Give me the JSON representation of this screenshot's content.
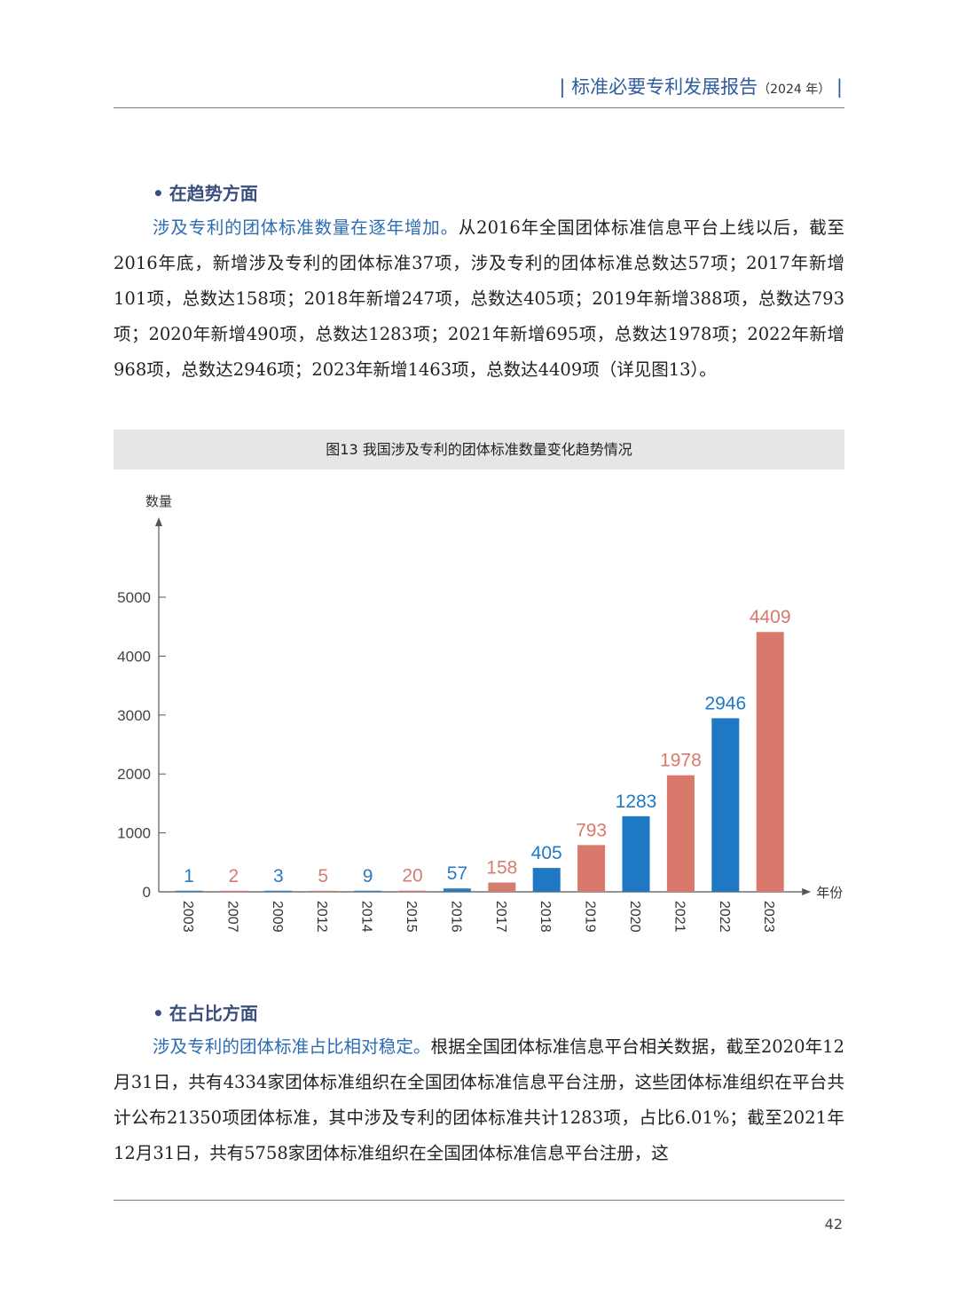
{
  "header": {
    "title": "标准必要专利发展报告",
    "year": "（2024 年）"
  },
  "section1": {
    "heading": "在趋势方面",
    "lead": "涉及专利的团体标准数量在逐年增加。",
    "body": "从2016年全国团体标准信息平台上线以后，截至2016年底，新增涉及专利的团体标准37项，涉及专利的团体标准总数达57项；2017年新增101项，总数达158项；2018年新增247项，总数达405项；2019年新增388项，总数达793项；2020年新增490项，总数达1283项；2021年新增695项，总数达1978项；2022年新增968项，总数达2946项；2023年新增1463项，总数达4409项（详见图13）。"
  },
  "figure": {
    "caption": "图13  我国涉及专利的团体标准数量变化趋势情况"
  },
  "chart_data": {
    "type": "bar",
    "title": "图13  我国涉及专利的团体标准数量变化趋势情况",
    "ylabel": "数量",
    "xlabel": "年份",
    "ylim": [
      0,
      5000
    ],
    "yticks": [
      0,
      1000,
      2000,
      3000,
      4000,
      5000
    ],
    "categories": [
      "2003",
      "2007",
      "2009",
      "2012",
      "2014",
      "2015",
      "2016",
      "2017",
      "2018",
      "2019",
      "2020",
      "2021",
      "2022",
      "2023"
    ],
    "values": [
      1,
      2,
      3,
      5,
      9,
      20,
      57,
      158,
      405,
      793,
      1283,
      1978,
      2946,
      4409
    ],
    "colors": [
      "#2b7bc0",
      "#d47d6e",
      "#2b7bc0",
      "#d47d6e",
      "#2b7bc0",
      "#d47d6e",
      "#2b7bc0",
      "#d47d6e",
      "#1f78c4",
      "#d8796b",
      "#1f78c4",
      "#d8796b",
      "#1f78c4",
      "#d8796b"
    ],
    "axis_color": "#555555"
  },
  "section2": {
    "heading": "在占比方面",
    "lead": "涉及专利的团体标准占比相对稳定。",
    "body": "根据全国团体标准信息平台相关数据，截至2020年12月31日，共有4334家团体标准组织在全国团体标准信息平台注册，这些团体标准组织在平台共计公布21350项团体标准，其中涉及专利的团体标准共计1283项，占比6.01%；截至2021年12月31日，共有5758家团体标准组织在全国团体标准信息平台注册，这"
  },
  "footer": {
    "page_number": "42"
  }
}
